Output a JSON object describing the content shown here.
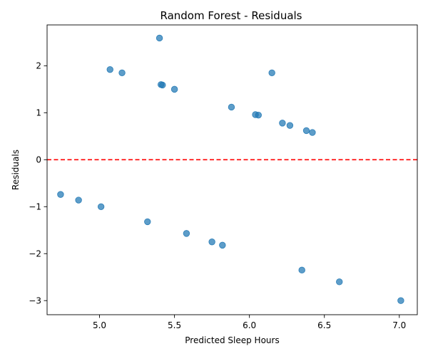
{
  "chart_data": {
    "type": "scatter",
    "title": "Random Forest - Residuals",
    "xlabel": "Predicted Sleep Hours",
    "ylabel": "Residuals",
    "xlim": [
      4.65,
      7.12
    ],
    "ylim": [
      -3.3,
      2.87
    ],
    "xticks": [
      5.0,
      5.5,
      6.0,
      6.5,
      7.0
    ],
    "xtick_labels": [
      "5.0",
      "5.5",
      "6.0",
      "6.5",
      "7.0"
    ],
    "yticks": [
      -3,
      -2,
      -1,
      0,
      1,
      2
    ],
    "ytick_labels": [
      "−3",
      "−2",
      "−1",
      "0",
      "1",
      "2"
    ],
    "grid": false,
    "point_color": "#1f77b4",
    "reference_line": {
      "y": 0,
      "color": "#ff0000",
      "style": "dashed"
    },
    "points": [
      {
        "x": 5.4,
        "y": 2.59
      },
      {
        "x": 5.07,
        "y": 1.92
      },
      {
        "x": 5.15,
        "y": 1.85
      },
      {
        "x": 6.15,
        "y": 1.85
      },
      {
        "x": 5.41,
        "y": 1.6
      },
      {
        "x": 5.42,
        "y": 1.59
      },
      {
        "x": 5.5,
        "y": 1.5
      },
      {
        "x": 5.88,
        "y": 1.12
      },
      {
        "x": 6.04,
        "y": 0.96
      },
      {
        "x": 6.06,
        "y": 0.95
      },
      {
        "x": 6.22,
        "y": 0.78
      },
      {
        "x": 6.27,
        "y": 0.73
      },
      {
        "x": 6.38,
        "y": 0.62
      },
      {
        "x": 6.42,
        "y": 0.58
      },
      {
        "x": 4.74,
        "y": -0.74
      },
      {
        "x": 4.86,
        "y": -0.86
      },
      {
        "x": 5.01,
        "y": -1.0
      },
      {
        "x": 5.32,
        "y": -1.32
      },
      {
        "x": 5.58,
        "y": -1.57
      },
      {
        "x": 5.75,
        "y": -1.75
      },
      {
        "x": 5.82,
        "y": -1.82
      },
      {
        "x": 6.35,
        "y": -2.35
      },
      {
        "x": 6.6,
        "y": -2.6
      },
      {
        "x": 7.01,
        "y": -3.0
      }
    ]
  }
}
